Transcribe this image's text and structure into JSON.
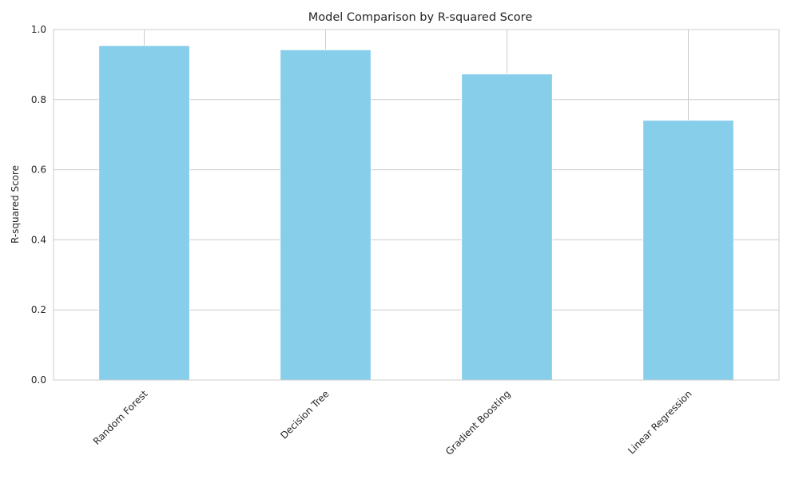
{
  "chart_data": {
    "type": "bar",
    "title": "Model Comparison by R-squared Score",
    "xlabel": "",
    "ylabel": "R-squared Score",
    "categories": [
      "Random Forest",
      "Decision Tree",
      "Gradient Boosting",
      "Linear Regression"
    ],
    "values": [
      0.954,
      0.942,
      0.873,
      0.741
    ],
    "ylim": [
      0,
      1.0
    ],
    "yticks": [
      "0.0",
      "0.2",
      "0.4",
      "0.6",
      "0.8",
      "1.0"
    ],
    "grid": true,
    "legend": "none",
    "bar_color": "#87CEEB",
    "grid_color": "#cccccc",
    "text_color": "#262626"
  }
}
